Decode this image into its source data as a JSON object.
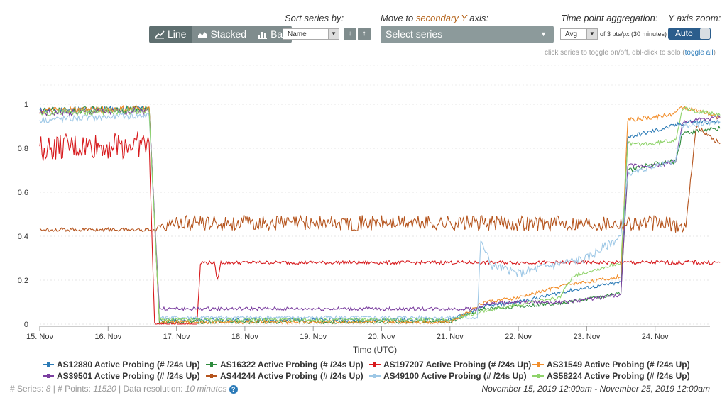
{
  "controls": {
    "chart_types": [
      {
        "label": "Line",
        "active": true,
        "icon": "line-chart-icon"
      },
      {
        "label": "Stacked",
        "active": false,
        "icon": "area-chart-icon"
      },
      {
        "label": "Bar",
        "active": false,
        "icon": "bar-chart-icon"
      }
    ],
    "sort_label": "Sort series by:",
    "sort_value": "Name",
    "sort_desc_icon": "↓",
    "sort_asc_icon": "↑",
    "secondary_label_prefix": "Move to ",
    "secondary_label_accent": "secondary Y",
    "secondary_label_suffix": " axis:",
    "secondary_placeholder": "Select series",
    "aggregation_label": "Time point aggregation:",
    "aggregation_value": "Avg",
    "aggregation_note": "of 3 pts/px (30 minutes)",
    "zoom_label": "Y axis zoom:",
    "zoom_value": "Auto",
    "hint_text": "click series to toggle on/off, dbl-click to solo (",
    "hint_link": "toggle all",
    "hint_close": ")"
  },
  "chart_data": {
    "type": "line",
    "xlabel": "Time (UTC)",
    "x_ticks": [
      "15. Nov",
      "16. Nov",
      "17. Nov",
      "18. Nov",
      "19. Nov",
      "20. Nov",
      "21. Nov",
      "22. Nov",
      "23. Nov",
      "24. Nov"
    ],
    "y_ticks": [
      "0",
      "0.2",
      "0.4",
      "0.6",
      "0.8",
      "1"
    ],
    "ylim": [
      0,
      1
    ],
    "xlim": [
      "2019-11-15 00:00",
      "2019-11-25 00:00"
    ],
    "grid": true,
    "legend_position": "bottom",
    "series": [
      {
        "name": "AS12880 Active Probing (# /24s Up)",
        "color": "#2c7bb6",
        "points": [
          [
            0,
            0.97
          ],
          [
            1.6,
            0.98
          ],
          [
            1.75,
            0.02
          ],
          [
            2,
            0.02
          ],
          [
            3,
            0.02
          ],
          [
            5,
            0.02
          ],
          [
            6,
            0.02
          ],
          [
            6.5,
            0.08
          ],
          [
            7,
            0.1
          ],
          [
            7.7,
            0.15
          ],
          [
            8.3,
            0.18
          ],
          [
            8.5,
            0.19
          ],
          [
            8.6,
            0.85
          ],
          [
            9,
            0.88
          ],
          [
            9.5,
            0.92
          ],
          [
            9.95,
            0.92
          ]
        ]
      },
      {
        "name": "AS16322 Active Probing (# /24s Up)",
        "color": "#2e8b3d",
        "points": [
          [
            0,
            0.97
          ],
          [
            1.6,
            0.98
          ],
          [
            1.75,
            0.01
          ],
          [
            2,
            0.01
          ],
          [
            3,
            0.01
          ],
          [
            5,
            0.01
          ],
          [
            6,
            0.01
          ],
          [
            6.5,
            0.07
          ],
          [
            7,
            0.08
          ],
          [
            7.7,
            0.1
          ],
          [
            8.3,
            0.13
          ],
          [
            8.5,
            0.14
          ],
          [
            8.6,
            0.7
          ],
          [
            9,
            0.73
          ],
          [
            9.3,
            0.74
          ],
          [
            9.4,
            0.87
          ],
          [
            9.95,
            0.89
          ]
        ]
      },
      {
        "name": "AS197207 Active Probing (# /24s Up)",
        "color": "#d7191c",
        "points": [
          [
            0,
            0.8
          ],
          [
            1.6,
            0.82
          ],
          [
            1.68,
            0.0
          ],
          [
            2.3,
            0.0
          ],
          [
            2.35,
            0.28
          ],
          [
            2.55,
            0.28
          ],
          [
            2.6,
            0.2
          ],
          [
            2.65,
            0.28
          ],
          [
            9.95,
            0.28
          ]
        ]
      },
      {
        "name": "AS31549 Active Probing (# /24s Up)",
        "color": "#f28e2b",
        "points": [
          [
            0,
            0.97
          ],
          [
            1.6,
            0.98
          ],
          [
            1.75,
            0.01
          ],
          [
            5,
            0.01
          ],
          [
            6,
            0.01
          ],
          [
            6.5,
            0.1
          ],
          [
            7,
            0.12
          ],
          [
            7.7,
            0.18
          ],
          [
            8.4,
            0.21
          ],
          [
            8.5,
            0.22
          ],
          [
            8.6,
            0.93
          ],
          [
            9,
            0.94
          ],
          [
            9.3,
            0.96
          ],
          [
            9.4,
            0.99
          ],
          [
            9.95,
            0.94
          ]
        ]
      },
      {
        "name": "AS39501 Active Probing (# /24s Up)",
        "color": "#7b3fa0",
        "points": [
          [
            0,
            0.96
          ],
          [
            1.6,
            0.97
          ],
          [
            1.75,
            0.07
          ],
          [
            2,
            0.07
          ],
          [
            6.4,
            0.07
          ],
          [
            6.5,
            0.09
          ],
          [
            7,
            0.1
          ],
          [
            7.7,
            0.1
          ],
          [
            8.4,
            0.13
          ],
          [
            8.5,
            0.13
          ],
          [
            8.6,
            0.72
          ],
          [
            9,
            0.72
          ],
          [
            9.3,
            0.74
          ],
          [
            9.4,
            0.92
          ],
          [
            9.95,
            0.94
          ]
        ]
      },
      {
        "name": "AS44244 Active Probing (# /24s Up)",
        "color": "#b5541d",
        "points": [
          [
            0,
            0.43
          ],
          [
            1.7,
            0.43
          ],
          [
            1.8,
            0.46
          ],
          [
            9.0,
            0.46
          ],
          [
            9.3,
            0.45
          ],
          [
            9.45,
            0.44
          ],
          [
            9.5,
            0.6
          ],
          [
            9.6,
            0.9
          ],
          [
            9.95,
            0.82
          ]
        ]
      },
      {
        "name": "AS49100 Active Probing (# /24s Up)",
        "color": "#9ec8e6",
        "points": [
          [
            0,
            0.93
          ],
          [
            1.6,
            0.95
          ],
          [
            1.75,
            0.03
          ],
          [
            2,
            0.03
          ],
          [
            6,
            0.03
          ],
          [
            6.4,
            0.03
          ],
          [
            6.45,
            0.38
          ],
          [
            6.6,
            0.27
          ],
          [
            7,
            0.23
          ],
          [
            7.5,
            0.27
          ],
          [
            8.0,
            0.3
          ],
          [
            8.4,
            0.38
          ],
          [
            8.5,
            0.4
          ],
          [
            8.6,
            0.68
          ],
          [
            9,
            0.72
          ],
          [
            9.3,
            0.74
          ],
          [
            9.4,
            0.9
          ],
          [
            9.95,
            0.92
          ]
        ]
      },
      {
        "name": "AS58224 Active Probing (# /24s Up)",
        "color": "#8fd36b",
        "points": [
          [
            0,
            0.96
          ],
          [
            1.6,
            0.97
          ],
          [
            1.75,
            0.02
          ],
          [
            2,
            0.02
          ],
          [
            6,
            0.02
          ],
          [
            6.5,
            0.06
          ],
          [
            7,
            0.09
          ],
          [
            7.6,
            0.12
          ],
          [
            7.8,
            0.22
          ],
          [
            8.4,
            0.27
          ],
          [
            8.5,
            0.28
          ],
          [
            8.6,
            0.82
          ],
          [
            9,
            0.82
          ],
          [
            9.3,
            0.84
          ],
          [
            9.4,
            0.98
          ],
          [
            9.95,
            0.95
          ]
        ]
      }
    ]
  },
  "footer": {
    "series_label": "# Series: ",
    "series_count": "8",
    "points_label": " | # Points: ",
    "points_count": "11520",
    "resolution_label": " | Data resolution: ",
    "resolution_value": "10 minutes",
    "help_icon": "?",
    "range": "November 15, 2019 12:00am - November 25, 2019 12:00am"
  }
}
